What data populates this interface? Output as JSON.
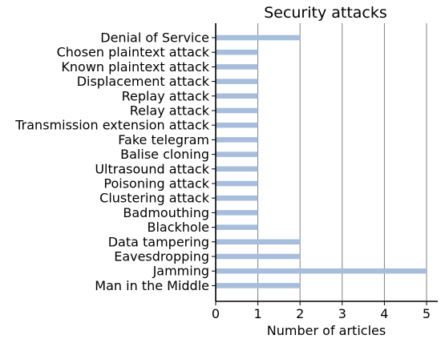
{
  "chart_data": {
    "type": "bar",
    "orientation": "horizontal",
    "title": "Security attacks",
    "xlabel": "Number of articles",
    "ylabel": "",
    "categories": [
      "Denial of Service",
      "Chosen plaintext attack",
      "Known plaintext attack",
      "Displacement attack",
      "Replay attack",
      "Relay attack",
      "Transmission extension attack",
      "Fake telegram",
      "Balise cloning",
      "Ultrasound attack",
      "Poisoning attack",
      "Clustering attack",
      "Badmouthing",
      "Blackhole",
      "Data tampering",
      "Eavesdropping",
      "Jamming",
      "Man in the Middle"
    ],
    "values": [
      2,
      1,
      1,
      1,
      1,
      1,
      1,
      1,
      1,
      1,
      1,
      1,
      1,
      1,
      2,
      2,
      5,
      2
    ],
    "xlim": [
      0,
      5.25
    ],
    "xticks": [
      "0",
      "1",
      "2",
      "3",
      "4",
      "5"
    ],
    "grid": "vertical",
    "bar_color": "#a7bddc",
    "grid_color": "#808080"
  }
}
